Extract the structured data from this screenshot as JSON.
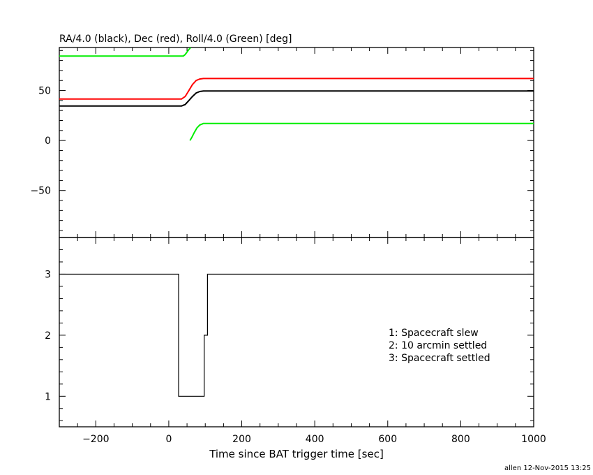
{
  "top_title": "RA/4.0 (black), Dec (red), Roll/4.0 (Green) [deg]",
  "xlabel": "Time since BAT trigger time [sec]",
  "footer": "allen 12-Nov-2015 13:25",
  "colors": {
    "ra": "#000000",
    "dec": "#ff0000",
    "roll": "#00ee00",
    "axes": "#000000"
  },
  "chart_data": [
    {
      "type": "line",
      "title": "RA/4.0 (black), Dec (red), Roll/4.0 (Green) [deg]",
      "xlabel": "Time since BAT trigger time [sec]",
      "ylabel": "",
      "xlim": [
        -300,
        1000
      ],
      "ylim": [
        -97,
        93
      ],
      "x_ticks": [
        -200,
        0,
        200,
        400,
        600,
        800,
        1000
      ],
      "x_tick_labels": [
        "−200",
        "0",
        "200",
        "400",
        "600",
        "800",
        "1000"
      ],
      "y_ticks": [
        -50,
        0,
        50
      ],
      "y_tick_labels": [
        "−50",
        "0",
        "50"
      ],
      "series": [
        {
          "color": "#000000",
          "x": [
            -300,
            35,
            45,
            55,
            65,
            75,
            85,
            95,
            340,
            1000
          ],
          "y": [
            34.5,
            34.5,
            36,
            40,
            44,
            47.5,
            49,
            49.5,
            49.5,
            49.5
          ]
        },
        {
          "color": "#ff0000",
          "x": [
            -300,
            35,
            45,
            55,
            65,
            75,
            85,
            95,
            340,
            1000
          ],
          "y": [
            41.5,
            41.5,
            44,
            50,
            56,
            60,
            61.5,
            62,
            62,
            62
          ]
        },
        {
          "color": "#00ee00",
          "x": [
            -300,
            40,
            45,
            50,
            55,
            60
          ],
          "y": [
            84.5,
            84.5,
            86,
            88.5,
            91,
            93
          ]
        },
        {
          "color": "#00ee00",
          "x": [
            58,
            63,
            70,
            77,
            85,
            95,
            340,
            1000
          ],
          "y": [
            0,
            3,
            8,
            12.5,
            15.5,
            17,
            17,
            17
          ]
        }
      ]
    },
    {
      "type": "line",
      "xlim": [
        -300,
        1000
      ],
      "ylim": [
        0.5,
        3.6
      ],
      "y_ticks": [
        1,
        2,
        3
      ],
      "y_tick_labels": [
        "1",
        "2",
        "3"
      ],
      "series": [
        {
          "color": "#000000",
          "x": [
            -300,
            27,
            27,
            97,
            97,
            106,
            106,
            1000
          ],
          "y": [
            3,
            3,
            1,
            1,
            2,
            2,
            3,
            3
          ]
        }
      ],
      "legend_position": "right",
      "legend": [
        "1: Spacecraft slew",
        "2: 10 arcmin settled",
        "3: Spacecraft settled"
      ]
    }
  ]
}
